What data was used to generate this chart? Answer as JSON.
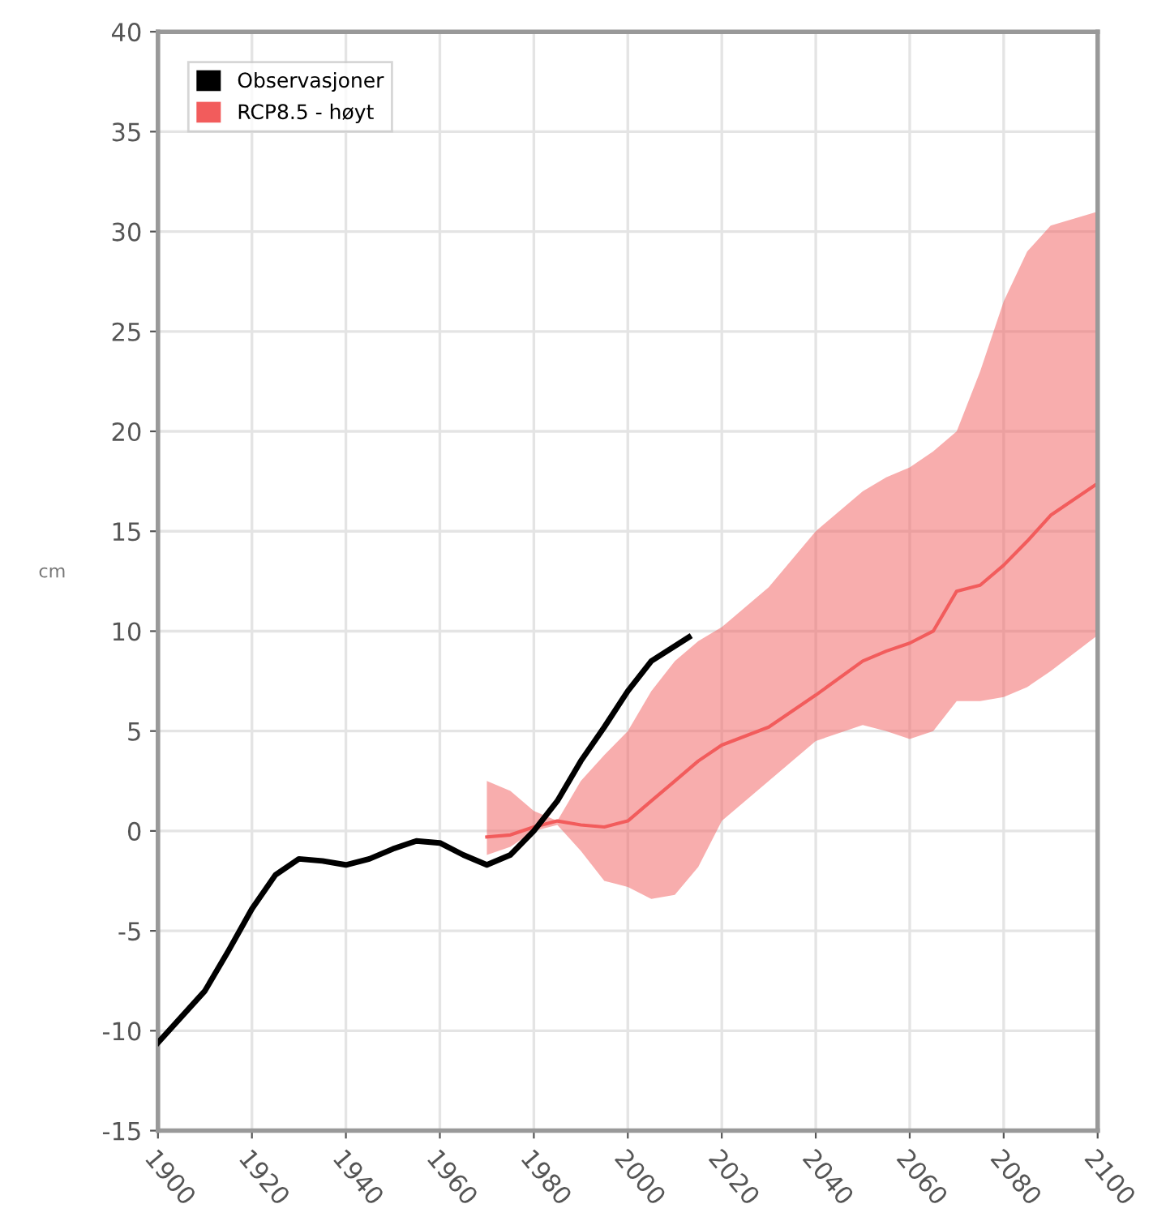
{
  "chart_data": {
    "type": "line",
    "ylabel": "cm",
    "xlim": [
      1900,
      2100
    ],
    "xticks": [
      1900,
      1920,
      1940,
      1960,
      1980,
      2000,
      2020,
      2040,
      2060,
      2080,
      2100
    ],
    "ylim": [
      -15,
      40
    ],
    "yticks": [
      -15,
      -10,
      -5,
      0,
      5,
      10,
      15,
      20,
      25,
      30,
      35,
      40
    ],
    "grid": true,
    "legend": "top left",
    "line_style": "solid",
    "marker": "none",
    "series": [
      {
        "name": "Observasjoner",
        "color": "#000000",
        "x": [
          1900,
          1905,
          1910,
          1915,
          1920,
          1925,
          1930,
          1935,
          1940,
          1945,
          1950,
          1955,
          1960,
          1965,
          1970,
          1975,
          1980,
          1985,
          1990,
          1995,
          2000,
          2005,
          2013
        ],
        "values": [
          -10.6,
          -9.3,
          -8.0,
          -6.0,
          -3.9,
          -2.2,
          -1.4,
          -1.5,
          -1.7,
          -1.4,
          -0.9,
          -0.5,
          -0.6,
          -1.2,
          -1.7,
          -1.2,
          0.0,
          1.5,
          3.5,
          5.2,
          7.0,
          8.5,
          9.7
        ]
      },
      {
        "name": "RCP8.5 - høyt",
        "color": "#f25c5c",
        "x": [
          1970,
          1975,
          1980,
          1985,
          1990,
          1995,
          2000,
          2005,
          2010,
          2015,
          2020,
          2030,
          2040,
          2050,
          2055,
          2060,
          2065,
          2070,
          2075,
          2080,
          2085,
          2090,
          2100
        ],
        "values": [
          -0.3,
          -0.2,
          0.2,
          0.5,
          0.3,
          0.2,
          0.5,
          1.5,
          2.5,
          3.5,
          4.3,
          5.2,
          6.8,
          8.5,
          9.0,
          9.4,
          10.0,
          12.0,
          12.3,
          13.3,
          14.5,
          15.8,
          17.4
        ],
        "lower": [
          -1.2,
          -0.8,
          0.0,
          0.3,
          -1.0,
          -2.5,
          -2.8,
          -3.4,
          -3.2,
          -1.8,
          0.5,
          2.5,
          4.5,
          5.3,
          5.0,
          4.6,
          5.0,
          6.5,
          6.5,
          6.7,
          7.2,
          8.0,
          9.8
        ],
        "upper": [
          2.5,
          2.0,
          1.0,
          0.5,
          2.5,
          3.8,
          5.0,
          7.0,
          8.5,
          9.5,
          10.2,
          12.2,
          15.0,
          17.0,
          17.7,
          18.2,
          19.0,
          20.0,
          23.0,
          26.5,
          29.0,
          30.3,
          31.0
        ]
      }
    ]
  }
}
